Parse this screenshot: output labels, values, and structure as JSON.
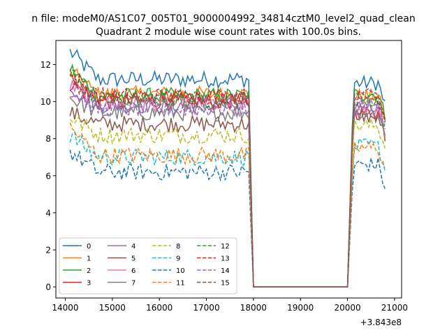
{
  "suptitle": "n file: modeM0/AS1C07_005T01_9000004992_34814cztM0_level2_quad_clean",
  "chart_data": {
    "type": "line",
    "title": "Quadrant 2 module wise count rates with 100.0s bins.",
    "xlabel": "",
    "ylabel": "",
    "x_offset_label": "+3.843e8",
    "xlim": [
      13800,
      21150
    ],
    "ylim": [
      -0.6,
      13.3
    ],
    "xticks": [
      14000,
      15000,
      16000,
      17000,
      18000,
      19000,
      20000,
      21000
    ],
    "yticks": [
      0,
      2,
      4,
      6,
      8,
      10,
      12
    ],
    "grid": false,
    "legend": {
      "placement": "lower-left",
      "columns": 4
    },
    "gap": {
      "start": 18000,
      "end": 20000
    },
    "series": [
      {
        "name": "0",
        "color": "#1f77b4",
        "dash": "solid",
        "pre_level": 11.2,
        "post_level": 11.0,
        "start": 12.7
      },
      {
        "name": "1",
        "color": "#ff7f0e",
        "dash": "solid",
        "pre_level": 10.4,
        "post_level": 10.3,
        "start": 11.6
      },
      {
        "name": "2",
        "color": "#2ca02c",
        "dash": "solid",
        "pre_level": 10.3,
        "post_level": 10.4,
        "start": 11.8
      },
      {
        "name": "3",
        "color": "#d62728",
        "dash": "solid",
        "pre_level": 10.0,
        "post_level": 9.4,
        "start": 11.0
      },
      {
        "name": "4",
        "color": "#9467bd",
        "dash": "solid",
        "pre_level": 9.8,
        "post_level": 9.8,
        "start": 10.8
      },
      {
        "name": "5",
        "color": "#8c564b",
        "dash": "solid",
        "pre_level": 8.8,
        "post_level": 9.2,
        "start": 9.4
      },
      {
        "name": "6",
        "color": "#e377c2",
        "dash": "solid",
        "pre_level": 9.9,
        "post_level": 9.6,
        "start": 10.9
      },
      {
        "name": "7",
        "color": "#7f7f7f",
        "dash": "solid",
        "pre_level": 9.4,
        "post_level": 9.4,
        "start": 10.2
      },
      {
        "name": "8",
        "color": "#bcbd22",
        "dash": "dashed",
        "pre_level": 8.2,
        "post_level": 8.7,
        "start": 9.2
      },
      {
        "name": "9",
        "color": "#17becf",
        "dash": "dashed",
        "pre_level": 7.0,
        "post_level": 7.6,
        "start": 8.2
      },
      {
        "name": "10",
        "color": "#1f77b4",
        "dash": "dashed",
        "pre_level": 6.2,
        "post_level": 6.6,
        "start": 7.3
      },
      {
        "name": "11",
        "color": "#ff7f0e",
        "dash": "dashed",
        "pre_level": 7.1,
        "post_level": 7.5,
        "start": 8.6
      },
      {
        "name": "12",
        "color": "#2ca02c",
        "dash": "dashed",
        "pre_level": 10.1,
        "post_level": 10.0,
        "start": 11.6
      },
      {
        "name": "13",
        "color": "#d62728",
        "dash": "dashed",
        "pre_level": 10.3,
        "post_level": 10.2,
        "start": 11.4
      },
      {
        "name": "14",
        "color": "#9467bd",
        "dash": "dashed",
        "pre_level": 9.6,
        "post_level": 9.9,
        "start": 10.6
      },
      {
        "name": "15",
        "color": "#8c564b",
        "dash": "dashed",
        "pre_level": 10.1,
        "post_level": 10.3,
        "start": 11.2
      }
    ]
  }
}
